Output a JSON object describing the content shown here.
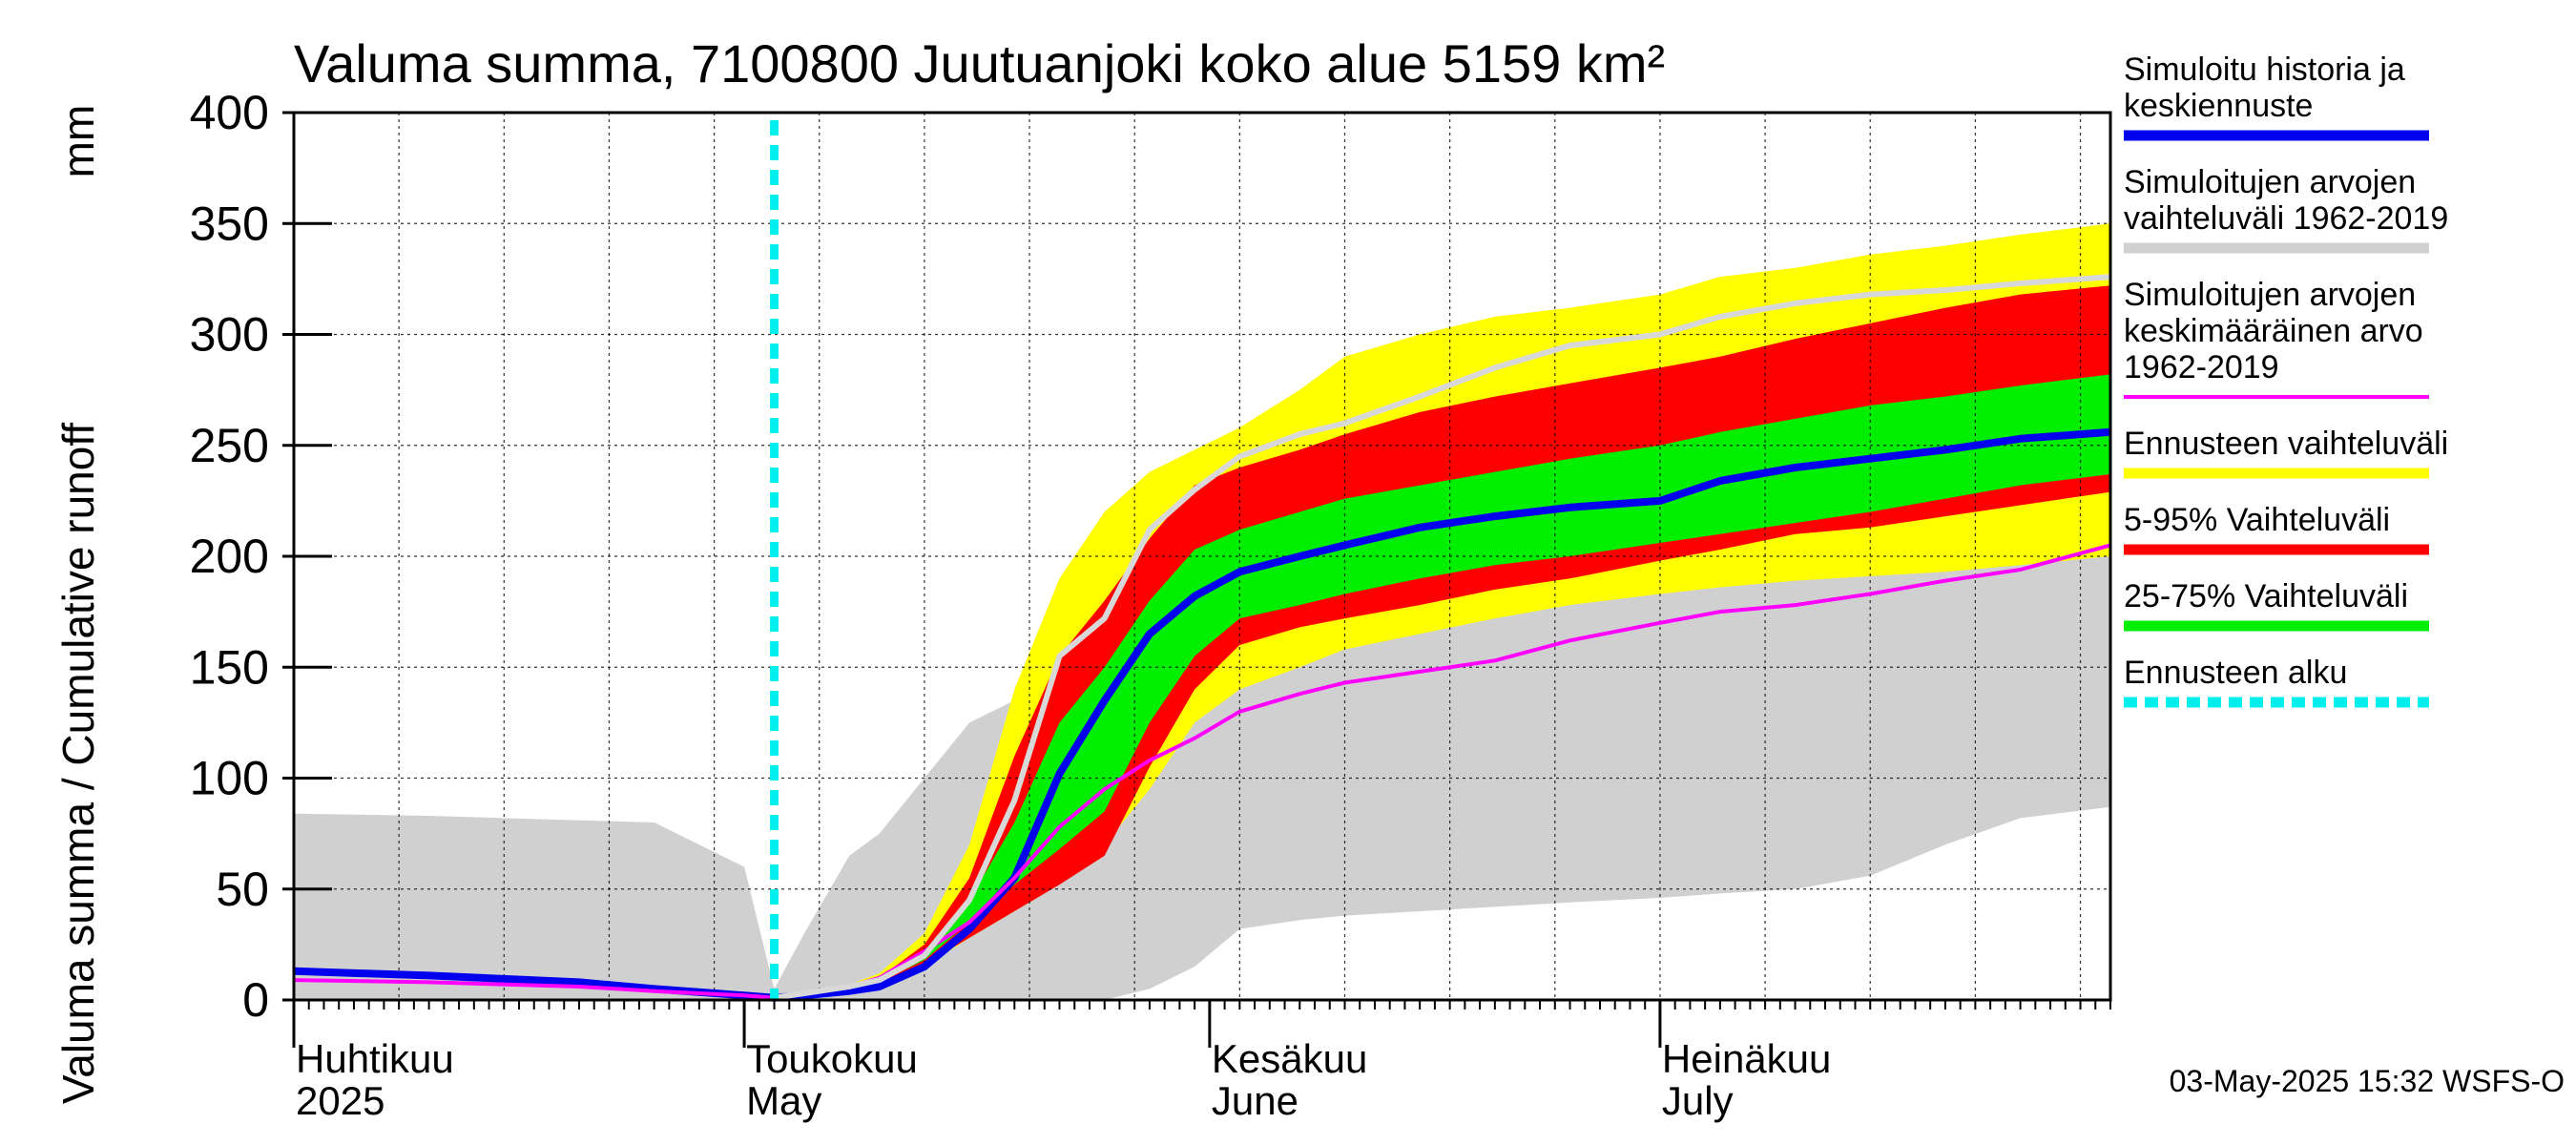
{
  "chart_data": {
    "type": "area",
    "title": "Valuma summa, 7100800 Juutuanjoki koko alue 5159 km²",
    "ylabel": "Valuma summa / Cumulative runoff",
    "yunit": "mm",
    "ylim": [
      0,
      400
    ],
    "yticks": [
      0,
      50,
      100,
      150,
      200,
      250,
      300,
      350,
      400
    ],
    "xlim": [
      "2025-04-01",
      "2025-07-31"
    ],
    "grid": true,
    "legend_position": "right",
    "month_labels": [
      {
        "fi": "Huhtikuu",
        "en": "2025",
        "start": "2025-04-01"
      },
      {
        "fi": "Toukokuu",
        "en": "May",
        "start": "2025-05-01"
      },
      {
        "fi": "Kesäkuu",
        "en": "June",
        "start": "2025-06-01"
      },
      {
        "fi": "Heinäkuu",
        "en": "July",
        "start": "2025-07-01"
      }
    ],
    "forecast_start": "2025-05-03",
    "dates": [
      "2025-04-01",
      "2025-04-10",
      "2025-04-20",
      "2025-04-25",
      "2025-05-01",
      "2025-05-03",
      "2025-05-05",
      "2025-05-08",
      "2025-05-10",
      "2025-05-13",
      "2025-05-16",
      "2025-05-19",
      "2025-05-22",
      "2025-05-25",
      "2025-05-28",
      "2025-05-31",
      "2025-06-03",
      "2025-06-07",
      "2025-06-10",
      "2025-06-15",
      "2025-06-20",
      "2025-06-25",
      "2025-07-01",
      "2025-07-05",
      "2025-07-10",
      "2025-07-15",
      "2025-07-20",
      "2025-07-25",
      "2025-07-31"
    ],
    "series": [
      {
        "name": "Simuloitujen arvojen vaihteluväli 1962-2019",
        "role": "range",
        "color": "#d0d0d0",
        "lower": [
          0,
          0,
          0,
          0,
          0,
          0,
          0,
          0,
          0,
          0,
          0,
          0,
          0,
          0,
          5,
          15,
          32,
          36,
          38,
          40,
          42,
          44,
          46,
          48,
          50,
          56,
          70,
          82,
          87
        ],
        "upper": [
          84,
          83,
          81,
          80,
          60,
          5,
          30,
          65,
          75,
          100,
          125,
          135,
          150,
          160,
          170,
          185,
          200,
          215,
          230,
          240,
          245,
          255,
          262,
          270,
          275,
          280,
          285,
          290,
          295
        ]
      },
      {
        "name": "Ennusteen vaihteluväli",
        "role": "range",
        "color": "#ffff00",
        "lower": [
          null,
          null,
          null,
          null,
          null,
          1,
          3,
          5,
          7,
          15,
          28,
          40,
          55,
          70,
          95,
          125,
          140,
          150,
          158,
          165,
          172,
          178,
          183,
          186,
          189,
          191,
          193,
          196,
          200
        ],
        "upper": [
          null,
          null,
          null,
          null,
          null,
          1,
          4,
          7,
          12,
          30,
          70,
          140,
          190,
          220,
          238,
          248,
          258,
          275,
          290,
          300,
          308,
          312,
          318,
          326,
          330,
          336,
          340,
          345,
          350
        ]
      },
      {
        "name": "5-95% Vaihteluväli",
        "role": "range",
        "color": "#ff0000",
        "lower": [
          null,
          null,
          null,
          null,
          null,
          1,
          3,
          5,
          7,
          16,
          28,
          40,
          52,
          65,
          105,
          140,
          160,
          168,
          172,
          178,
          185,
          190,
          198,
          203,
          210,
          213,
          218,
          223,
          229
        ],
        "upper": [
          null,
          null,
          null,
          null,
          null,
          1,
          4,
          6,
          10,
          25,
          55,
          110,
          155,
          180,
          208,
          232,
          240,
          248,
          255,
          265,
          272,
          278,
          285,
          290,
          298,
          305,
          312,
          318,
          322
        ]
      },
      {
        "name": "25-75% Vaihteluväli",
        "role": "range",
        "color": "#00ee00",
        "lower": [
          null,
          null,
          null,
          null,
          null,
          1,
          3,
          5,
          8,
          18,
          35,
          52,
          68,
          85,
          125,
          155,
          172,
          178,
          183,
          190,
          196,
          200,
          206,
          210,
          215,
          220,
          226,
          232,
          237
        ],
        "upper": [
          null,
          null,
          null,
          null,
          null,
          1,
          4,
          6,
          9,
          22,
          45,
          80,
          125,
          150,
          180,
          203,
          212,
          220,
          226,
          232,
          238,
          244,
          250,
          256,
          262,
          268,
          272,
          277,
          282
        ]
      },
      {
        "name": "Simuloitu historia ja keskiennuste",
        "role": "line",
        "color": "#0000ee",
        "values": [
          13,
          11,
          8,
          5,
          2,
          1,
          2,
          4,
          6,
          15,
          32,
          55,
          102,
          135,
          165,
          182,
          193,
          200,
          205,
          213,
          218,
          222,
          225,
          234,
          240,
          244,
          248,
          253,
          256
        ]
      },
      {
        "name": "Simuloitujen arvojen keskimääräinen arvo 1962-2019",
        "role": "line",
        "color": "#ff00ff",
        "values": [
          9,
          8,
          6,
          4,
          2,
          1,
          3,
          6,
          10,
          22,
          35,
          55,
          78,
          95,
          108,
          118,
          130,
          138,
          143,
          148,
          153,
          162,
          170,
          175,
          178,
          183,
          189,
          194,
          205
        ]
      },
      {
        "name": "Simuloitujen arvojen vaihteluväli 1962-2019",
        "role": "max-line",
        "color": "#d8d8d8",
        "values": [
          null,
          null,
          null,
          null,
          null,
          1,
          3,
          6,
          9,
          20,
          45,
          90,
          155,
          172,
          212,
          230,
          245,
          255,
          260,
          272,
          285,
          295,
          300,
          308,
          314,
          318,
          320,
          323,
          326
        ]
      }
    ],
    "legend": [
      {
        "label_lines": [
          "Simuloitu historia ja",
          "keskiennuste"
        ],
        "color": "#0000ee",
        "style": "solid"
      },
      {
        "label_lines": [
          "Simuloitujen arvojen",
          "vaihteluväli 1962-2019"
        ],
        "color": "#d0d0d0",
        "style": "solid"
      },
      {
        "label_lines": [
          "Simuloitujen arvojen",
          "keskimääräinen arvo",
          "   1962-2019"
        ],
        "color": "#ff00ff",
        "style": "thin"
      },
      {
        "label_lines": [
          "Ennusteen vaihteluväli"
        ],
        "color": "#ffff00",
        "style": "solid"
      },
      {
        "label_lines": [
          "5-95% Vaihteluväli"
        ],
        "color": "#ff0000",
        "style": "solid"
      },
      {
        "label_lines": [
          "25-75% Vaihteluväli"
        ],
        "color": "#00ee00",
        "style": "solid"
      },
      {
        "label_lines": [
          "Ennusteen alku"
        ],
        "color": "#00eeee",
        "style": "dashed"
      }
    ],
    "footer": "03-May-2025 15:32 WSFS-O"
  }
}
